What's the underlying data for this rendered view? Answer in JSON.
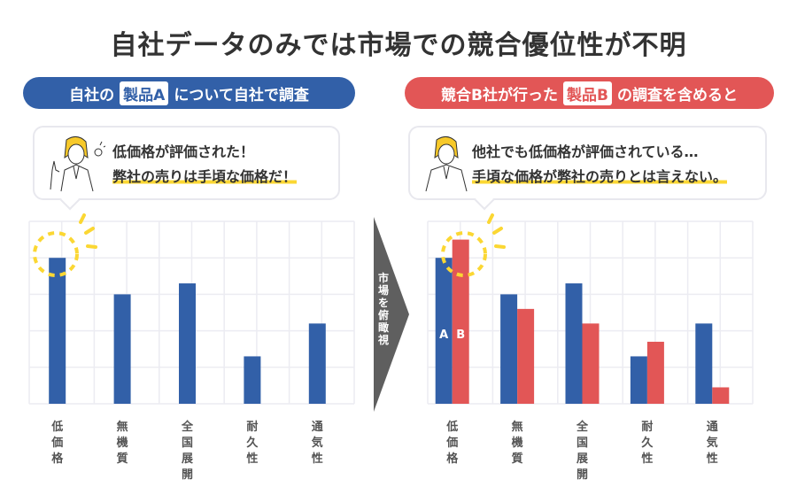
{
  "title": "自社データのみでは市場での競合優位性が不明",
  "left": {
    "pill_pre": "自社の",
    "pill_tag": "製品A",
    "pill_post": "について自社で調査",
    "line1": "低価格が評価された！",
    "line2": "弊社の売りは手頃な価格だ！"
  },
  "right": {
    "pill_pre": "競合B社が行った",
    "pill_tag": "製品B",
    "pill_post": "の調査を含めると",
    "line1": "他社でも低価格が評価されている…",
    "line2": "手頃な価格が弊社の売りとは言えない。"
  },
  "arrow_text": [
    "市",
    "場",
    "を",
    "俯",
    "瞰",
    "視"
  ],
  "colors": {
    "a": "#3260a8",
    "b": "#e25656",
    "highlight": "#fbd733"
  },
  "chart_data": [
    {
      "type": "bar",
      "title": "",
      "categories": [
        "低価格",
        "無機質",
        "全国展開",
        "耐久性",
        "通気性"
      ],
      "series": [
        {
          "name": "A",
          "values": [
            4,
            3,
            3.3,
            1.3,
            2.2
          ]
        }
      ],
      "ylim": [
        0,
        5
      ],
      "grid": true
    },
    {
      "type": "bar",
      "title": "",
      "categories": [
        "低価格",
        "無機質",
        "全国展開",
        "耐久性",
        "通気性"
      ],
      "series": [
        {
          "name": "A",
          "values": [
            4,
            3,
            3.3,
            1.3,
            2.2
          ]
        },
        {
          "name": "B",
          "values": [
            4.5,
            2.6,
            2.2,
            1.7,
            0.45
          ]
        }
      ],
      "ylim": [
        0,
        5
      ],
      "grid": true
    }
  ]
}
